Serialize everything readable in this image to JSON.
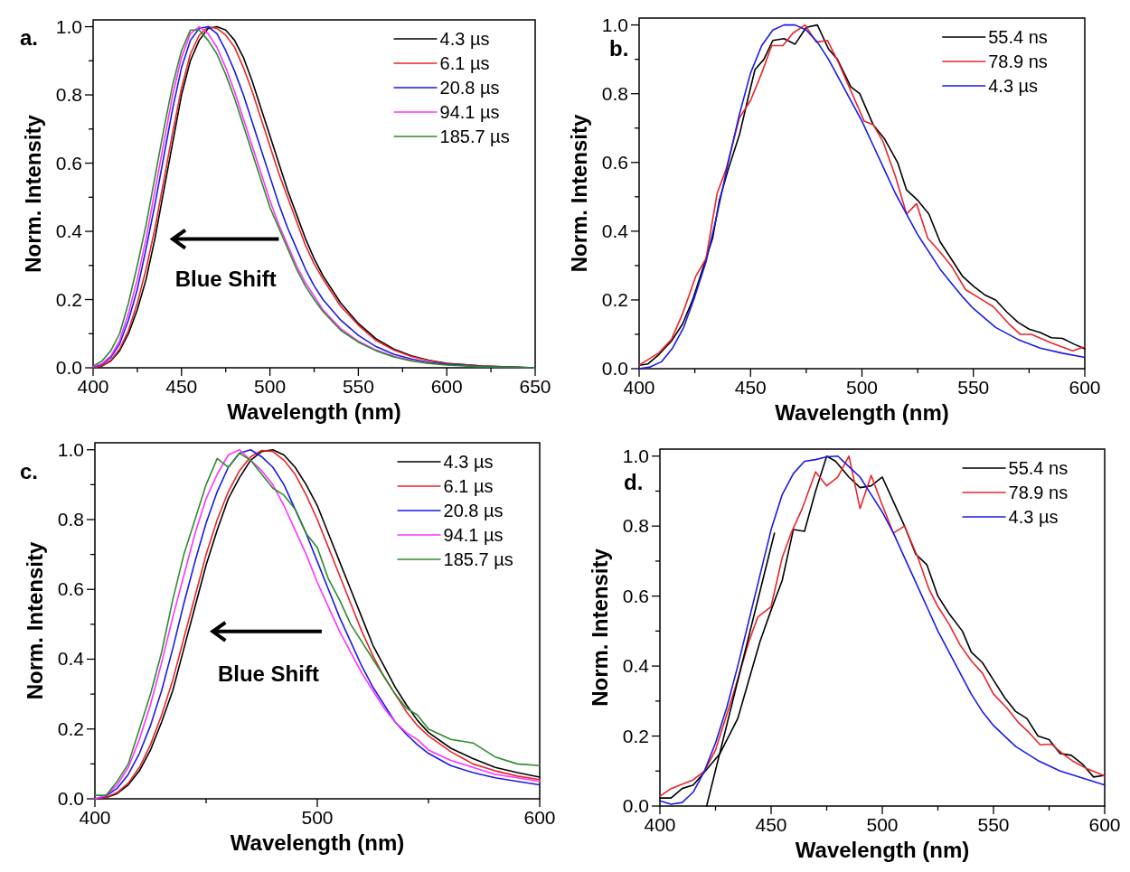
{
  "chart_data": [
    {
      "type": "line",
      "title": "a.",
      "xlabel": "Wavelength (nm)",
      "ylabel": "Norm. Intensity",
      "annotations": [
        "Blue Shift"
      ],
      "legend": "top right",
      "xlim": [
        400,
        650
      ],
      "ylim": [
        0,
        1.02
      ],
      "xticks": [
        400,
        {
          "value": 425,
          "label": null
        },
        450,
        {
          "value": 475,
          "label": null
        },
        500,
        {
          "value": 525,
          "label": null
        },
        550,
        {
          "value": 575,
          "label": null
        },
        600,
        {
          "value": 625,
          "label": null
        },
        650
      ],
      "yticks": [
        {
          "value": 0,
          "label": "0.0"
        },
        {
          "value": 0.1,
          "label": null
        },
        0.2,
        {
          "value": 0.3,
          "label": null
        },
        0.4,
        {
          "value": 0.5,
          "label": null
        },
        0.6,
        {
          "value": 0.7,
          "label": null
        },
        0.8,
        {
          "value": 0.9,
          "label": null
        },
        {
          "value": 1,
          "label": "1.0"
        }
      ],
      "x": [
        400,
        405,
        410,
        415,
        420,
        425,
        430,
        435,
        440,
        445,
        450,
        455,
        460,
        465,
        470,
        475,
        480,
        485,
        490,
        495,
        500,
        505,
        510,
        515,
        520,
        525,
        530,
        540,
        550,
        560,
        570,
        580,
        590,
        600,
        620,
        650
      ],
      "series": [
        {
          "name": "4.3 µs",
          "color": "#000000",
          "values": [
            0,
            0.005,
            0.02,
            0.05,
            0.1,
            0.17,
            0.26,
            0.38,
            0.52,
            0.66,
            0.8,
            0.9,
            0.96,
            0.995,
            1.0,
            0.99,
            0.96,
            0.91,
            0.84,
            0.76,
            0.68,
            0.6,
            0.52,
            0.45,
            0.38,
            0.32,
            0.27,
            0.19,
            0.13,
            0.085,
            0.055,
            0.035,
            0.022,
            0.013,
            0.005,
            0
          ]
        },
        {
          "name": "6.1 µs",
          "color": "#e8262a",
          "values": [
            0,
            0.006,
            0.022,
            0.055,
            0.11,
            0.19,
            0.29,
            0.41,
            0.55,
            0.69,
            0.82,
            0.92,
            0.975,
            1.0,
            0.995,
            0.975,
            0.94,
            0.88,
            0.81,
            0.73,
            0.65,
            0.57,
            0.5,
            0.43,
            0.36,
            0.305,
            0.26,
            0.18,
            0.125,
            0.08,
            0.052,
            0.033,
            0.021,
            0.012,
            0.005,
            0
          ]
        },
        {
          "name": "20.8 µs",
          "color": "#1a1ae6",
          "values": [
            0.002,
            0.01,
            0.03,
            0.07,
            0.14,
            0.23,
            0.35,
            0.48,
            0.62,
            0.76,
            0.88,
            0.96,
            0.995,
            1.0,
            0.98,
            0.93,
            0.87,
            0.8,
            0.72,
            0.64,
            0.56,
            0.48,
            0.41,
            0.35,
            0.29,
            0.24,
            0.2,
            0.14,
            0.095,
            0.062,
            0.04,
            0.026,
            0.016,
            0.01,
            0.004,
            0
          ]
        },
        {
          "name": "94.1 µs",
          "color": "#ff33ff",
          "values": [
            0.003,
            0.012,
            0.035,
            0.08,
            0.16,
            0.26,
            0.38,
            0.52,
            0.66,
            0.8,
            0.91,
            0.98,
            1.0,
            0.98,
            0.94,
            0.88,
            0.81,
            0.73,
            0.65,
            0.57,
            0.49,
            0.42,
            0.36,
            0.3,
            0.25,
            0.21,
            0.17,
            0.115,
            0.078,
            0.052,
            0.034,
            0.022,
            0.014,
            null,
            null,
            null
          ]
        },
        {
          "name": "185.7 µs",
          "color": "#2e8b2e",
          "values": [
            0.005,
            0.02,
            0.05,
            0.1,
            0.19,
            0.3,
            0.42,
            0.56,
            0.7,
            0.83,
            0.93,
            0.99,
            0.99,
            0.96,
            0.92,
            0.86,
            0.79,
            0.71,
            0.63,
            0.55,
            0.47,
            0.41,
            0.35,
            0.29,
            0.24,
            0.2,
            0.165,
            0.11,
            0.075,
            0.05,
            0.032,
            0.02,
            0.013,
            0.008,
            0.003,
            0
          ]
        }
      ]
    },
    {
      "type": "line",
      "title": "b.",
      "xlabel": "Wavelength (nm)",
      "ylabel": "Norm. Intensity",
      "legend": "top right",
      "xlim": [
        400,
        600
      ],
      "ylim": [
        0,
        1.02
      ],
      "xticks": [
        400,
        {
          "value": 425,
          "label": null
        },
        450,
        {
          "value": 475,
          "label": null
        },
        500,
        {
          "value": 525,
          "label": null
        },
        550,
        {
          "value": 575,
          "label": null
        },
        600
      ],
      "yticks": [
        {
          "value": 0,
          "label": "0.0"
        },
        {
          "value": 0.1,
          "label": null
        },
        0.2,
        {
          "value": 0.3,
          "label": null
        },
        0.4,
        {
          "value": 0.5,
          "label": null
        },
        0.6,
        {
          "value": 0.7,
          "label": null
        },
        0.8,
        {
          "value": 0.9,
          "label": null
        },
        {
          "value": 1,
          "label": "1.0"
        }
      ],
      "series": [
        {
          "name": "55.4 ns",
          "color": "#000000",
          "x": [
            400,
            404,
            409,
            414.5,
            419.5,
            424,
            429,
            433,
            436,
            440,
            445,
            449,
            452,
            456,
            460,
            465,
            470,
            475,
            480,
            485,
            489,
            495,
            499,
            505,
            510,
            516,
            520,
            525,
            530,
            535,
            540,
            545,
            550,
            555,
            560,
            565,
            570,
            575,
            580,
            585,
            590,
            595,
            600
          ],
          "values": [
            0.01,
            0.014,
            0.042,
            0.08,
            0.13,
            0.2,
            0.3,
            0.38,
            0.49,
            0.58,
            0.68,
            0.79,
            0.87,
            0.9,
            0.955,
            0.96,
            0.944,
            0.993,
            1.0,
            0.93,
            0.9,
            0.82,
            0.8,
            0.71,
            0.67,
            0.6,
            0.52,
            0.49,
            0.45,
            0.37,
            0.32,
            0.27,
            0.24,
            0.215,
            0.2,
            0.165,
            0.135,
            0.115,
            0.105,
            0.09,
            0.088,
            0.072,
            0.058
          ]
        },
        {
          "name": "78.9 ns",
          "color": "#e8262a",
          "x": [
            400,
            409,
            414.5,
            419.5,
            425.5,
            430,
            435,
            439,
            445,
            450,
            455,
            459.5,
            464.5,
            469,
            474.5,
            479.5,
            484.5,
            489.5,
            501,
            505,
            509.5,
            515,
            520,
            524.5,
            529.5,
            535,
            540,
            546.5,
            554,
            559,
            566,
            571,
            576,
            585,
            594.5,
            600
          ],
          "values": [
            0.01,
            0.047,
            0.085,
            0.16,
            0.27,
            0.32,
            0.51,
            0.58,
            0.73,
            0.78,
            0.86,
            0.94,
            0.94,
            0.976,
            1.0,
            0.95,
            0.955,
            0.89,
            0.72,
            0.71,
            0.66,
            0.56,
            0.45,
            0.48,
            0.38,
            0.34,
            0.3,
            0.23,
            0.2,
            0.18,
            0.13,
            0.1,
            0.1,
            0.075,
            0.052,
            0.064
          ]
        },
        {
          "name": "4.3 µs",
          "color": "#1a1ae6",
          "x": [
            400,
            405,
            410,
            415,
            420,
            425,
            430,
            435,
            440,
            445,
            450,
            455,
            460,
            465,
            470,
            475,
            480,
            485,
            490,
            495,
            500,
            505,
            510,
            515,
            520,
            525,
            530,
            535,
            540,
            545,
            550,
            560,
            570,
            580,
            590,
            600
          ],
          "values": [
            0,
            0.005,
            0.02,
            0.06,
            0.12,
            0.21,
            0.31,
            0.45,
            0.6,
            0.74,
            0.86,
            0.94,
            0.985,
            1.0,
            1.0,
            0.985,
            0.95,
            0.9,
            0.84,
            0.78,
            0.72,
            0.65,
            0.58,
            0.51,
            0.45,
            0.39,
            0.34,
            0.29,
            0.25,
            0.21,
            0.175,
            0.12,
            0.085,
            0.06,
            0.045,
            0.033
          ]
        }
      ]
    },
    {
      "type": "line",
      "title": "c.",
      "xlabel": "Wavelength (nm)",
      "ylabel": "Norm. Intensity",
      "annotations": [
        "Blue Shift"
      ],
      "legend": "top right",
      "xlim": [
        400,
        600
      ],
      "ylim": [
        0,
        1.02
      ],
      "xticks": [
        400,
        {
          "value": 450,
          "label": null
        },
        500,
        {
          "value": 550,
          "label": null
        },
        600
      ],
      "yticks": [
        {
          "value": 0,
          "label": "0.0"
        },
        {
          "value": 0.1,
          "label": null
        },
        0.2,
        {
          "value": 0.3,
          "label": null
        },
        0.4,
        {
          "value": 0.5,
          "label": null
        },
        0.6,
        {
          "value": 0.7,
          "label": null
        },
        0.8,
        {
          "value": 0.9,
          "label": null
        },
        {
          "value": 1,
          "label": "1.0"
        }
      ],
      "x": [
        400,
        405,
        410,
        415,
        420,
        425,
        430,
        435,
        440,
        445,
        450,
        455,
        460,
        465,
        470,
        475,
        480,
        485,
        490,
        495,
        500,
        505,
        510,
        515,
        520,
        525,
        530,
        535,
        540,
        545,
        550,
        560,
        570,
        580,
        590,
        600
      ],
      "series": [
        {
          "name": "4.3 µs",
          "color": "#000000",
          "values": [
            0,
            0.003,
            0.015,
            0.04,
            0.08,
            0.14,
            0.22,
            0.31,
            0.43,
            0.55,
            0.67,
            0.77,
            0.86,
            0.92,
            0.97,
            0.995,
            1.0,
            0.985,
            0.95,
            0.9,
            0.84,
            0.76,
            0.68,
            0.6,
            0.52,
            0.44,
            0.38,
            0.32,
            0.27,
            0.225,
            0.19,
            0.145,
            0.115,
            0.09,
            0.075,
            0.062
          ]
        },
        {
          "name": "6.1 µs",
          "color": "#e8262a",
          "values": [
            0,
            0.004,
            0.018,
            0.045,
            0.09,
            0.155,
            0.24,
            0.34,
            0.46,
            0.58,
            0.7,
            0.8,
            0.88,
            0.94,
            0.98,
            0.998,
            0.995,
            0.97,
            0.93,
            0.87,
            0.8,
            0.72,
            0.64,
            0.56,
            0.48,
            0.41,
            0.35,
            0.3,
            0.25,
            0.21,
            0.18,
            0.135,
            0.1,
            0.08,
            0.065,
            0.055
          ]
        },
        {
          "name": "20.8 µs",
          "color": "#1a1ae6",
          "values": [
            0,
            0.008,
            0.03,
            0.07,
            0.13,
            0.21,
            0.31,
            0.43,
            0.56,
            0.68,
            0.79,
            0.88,
            0.95,
            0.99,
            1.0,
            0.98,
            0.95,
            0.9,
            0.83,
            0.76,
            0.68,
            0.6,
            0.52,
            0.45,
            0.38,
            0.32,
            0.27,
            0.22,
            0.185,
            0.155,
            0.13,
            0.095,
            0.075,
            0.06,
            0.05,
            0.04
          ]
        },
        {
          "name": "94.1 µs",
          "color": "#ff33ff",
          "values": [
            0,
            0.01,
            0.04,
            0.09,
            0.17,
            0.27,
            0.39,
            0.52,
            0.64,
            0.76,
            0.86,
            0.93,
            0.985,
            1.0,
            0.97,
            0.94,
            0.9,
            0.84,
            0.77,
            0.7,
            0.62,
            0.55,
            0.48,
            0.42,
            0.36,
            0.31,
            0.26,
            0.22,
            0.19,
            0.17,
            0.14,
            0.11,
            0.09,
            0.07,
            0.06,
            0.05
          ]
        },
        {
          "name": "185.7 µs",
          "color": "#2e8b2e",
          "values": [
            0.01,
            0.01,
            0.05,
            0.1,
            0.2,
            0.3,
            0.42,
            0.57,
            0.7,
            0.8,
            0.9,
            0.975,
            0.95,
            0.99,
            0.97,
            0.93,
            0.89,
            0.87,
            0.83,
            0.76,
            0.72,
            0.63,
            0.57,
            0.5,
            0.45,
            0.4,
            0.35,
            0.3,
            0.26,
            0.24,
            0.2,
            0.17,
            0.16,
            0.12,
            0.1,
            0.095
          ]
        }
      ]
    },
    {
      "type": "line",
      "title": "d.",
      "xlabel": "Wavelength (nm)",
      "ylabel": "Norm. Intensity",
      "legend": "top right",
      "xlim": [
        400,
        600
      ],
      "ylim": [
        0,
        1.02
      ],
      "xticks": [
        400,
        {
          "value": 425,
          "label": null
        },
        450,
        {
          "value": 475,
          "label": null
        },
        500,
        {
          "value": 525,
          "label": null
        },
        550,
        {
          "value": 575,
          "label": null
        },
        600
      ],
      "yticks": [
        {
          "value": 0,
          "label": "0.0"
        },
        {
          "value": 0.1,
          "label": null
        },
        0.2,
        {
          "value": 0.3,
          "label": null
        },
        0.4,
        {
          "value": 0.5,
          "label": null
        },
        0.6,
        {
          "value": 0.7,
          "label": null
        },
        0.8,
        {
          "value": 0.9,
          "label": null
        },
        {
          "value": 1,
          "label": "1.0"
        }
      ],
      "series": [
        {
          "name": "55.4 ns",
          "color": "#000000",
          "x": [
            400,
            405,
            410,
            415,
            420,
            427,
            435,
            440,
            445,
            450,
            455,
            460,
            465,
            470,
            475,
            479,
            485,
            490,
            495,
            500,
            505,
            510,
            515,
            520,
            525,
            530,
            536,
            540,
            545,
            550,
            555,
            560,
            565,
            570,
            575,
            580,
            585,
            590,
            595,
            600
          ],
          "values": [
            0.023,
            0.023,
            0.05,
            0.06,
            0.097,
            0.15,
            0.25,
            0.36,
            0.47,
            0.56,
            0.645,
            0.79,
            0.785,
            0.9,
            1.0,
            0.985,
            0.94,
            0.91,
            0.915,
            0.94,
            0.87,
            0.8,
            0.72,
            0.69,
            0.6,
            0.55,
            0.5,
            0.44,
            0.41,
            0.36,
            0.31,
            0.27,
            0.25,
            0.2,
            0.19,
            0.15,
            0.145,
            0.12,
            0.083,
            0.088
          ]
        },
        {
          "name": "78.9 ns",
          "color": "#e8262a",
          "x": [
            400,
            405,
            415,
            420,
            425,
            433,
            440,
            444,
            450,
            455,
            459,
            464,
            470,
            475,
            480,
            485,
            490,
            495,
            500,
            505,
            510,
            516,
            521,
            525,
            530,
            535,
            540,
            545,
            550,
            556,
            561,
            566,
            571,
            576,
            581,
            586,
            591,
            600
          ],
          "values": [
            0.028,
            0.05,
            0.075,
            0.1,
            0.16,
            0.32,
            0.47,
            0.54,
            0.57,
            0.71,
            0.78,
            0.85,
            0.955,
            0.915,
            0.94,
            1.0,
            0.85,
            0.945,
            0.86,
            0.78,
            0.8,
            0.71,
            0.62,
            0.57,
            0.52,
            0.46,
            0.415,
            0.38,
            0.32,
            0.28,
            0.24,
            0.21,
            0.175,
            0.177,
            0.15,
            0.127,
            0.11,
            0.086
          ]
        },
        {
          "name": "4.3 µs",
          "color": "#1a1ae6",
          "x": [
            400,
            405,
            410,
            415,
            420,
            425,
            430,
            435,
            440,
            445,
            450,
            455,
            460,
            465,
            470,
            475,
            480,
            485,
            490,
            495,
            500,
            505,
            510,
            515,
            520,
            525,
            530,
            535,
            540,
            545,
            550,
            555,
            560,
            570,
            580,
            590,
            600
          ],
          "values": [
            0.015,
            0.005,
            0.01,
            0.04,
            0.1,
            0.18,
            0.28,
            0.4,
            0.53,
            0.66,
            0.79,
            0.89,
            0.95,
            0.985,
            0.99,
            0.998,
            1.0,
            0.97,
            0.94,
            0.89,
            0.84,
            0.78,
            0.71,
            0.64,
            0.57,
            0.5,
            0.44,
            0.38,
            0.32,
            0.27,
            0.23,
            0.2,
            0.17,
            0.13,
            0.1,
            0.08,
            0.06
          ]
        },
        {
          "color": "#000000",
          "x": [
            421,
            451.5
          ],
          "values": [
            0,
            0.78
          ]
        }
      ]
    }
  ]
}
